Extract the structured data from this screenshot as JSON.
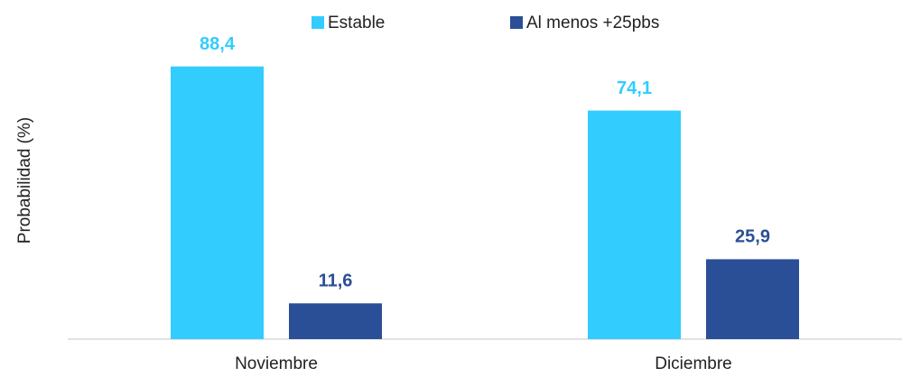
{
  "chart_data": {
    "type": "bar",
    "y_label": "Probabilidad (%)",
    "categories": [
      "Noviembre",
      "Diciembre"
    ],
    "series": [
      {
        "name": "Estable",
        "color": "#33ccff",
        "values": [
          88.4,
          74.1
        ],
        "value_labels": [
          "88,4",
          "74,1"
        ]
      },
      {
        "name": "Al menos +25pbs",
        "color": "#2a4f96",
        "values": [
          11.6,
          25.9
        ],
        "value_labels": [
          "11,6",
          "25,9"
        ]
      }
    ],
    "ylim": [
      0,
      100
    ],
    "legend": "top"
  }
}
